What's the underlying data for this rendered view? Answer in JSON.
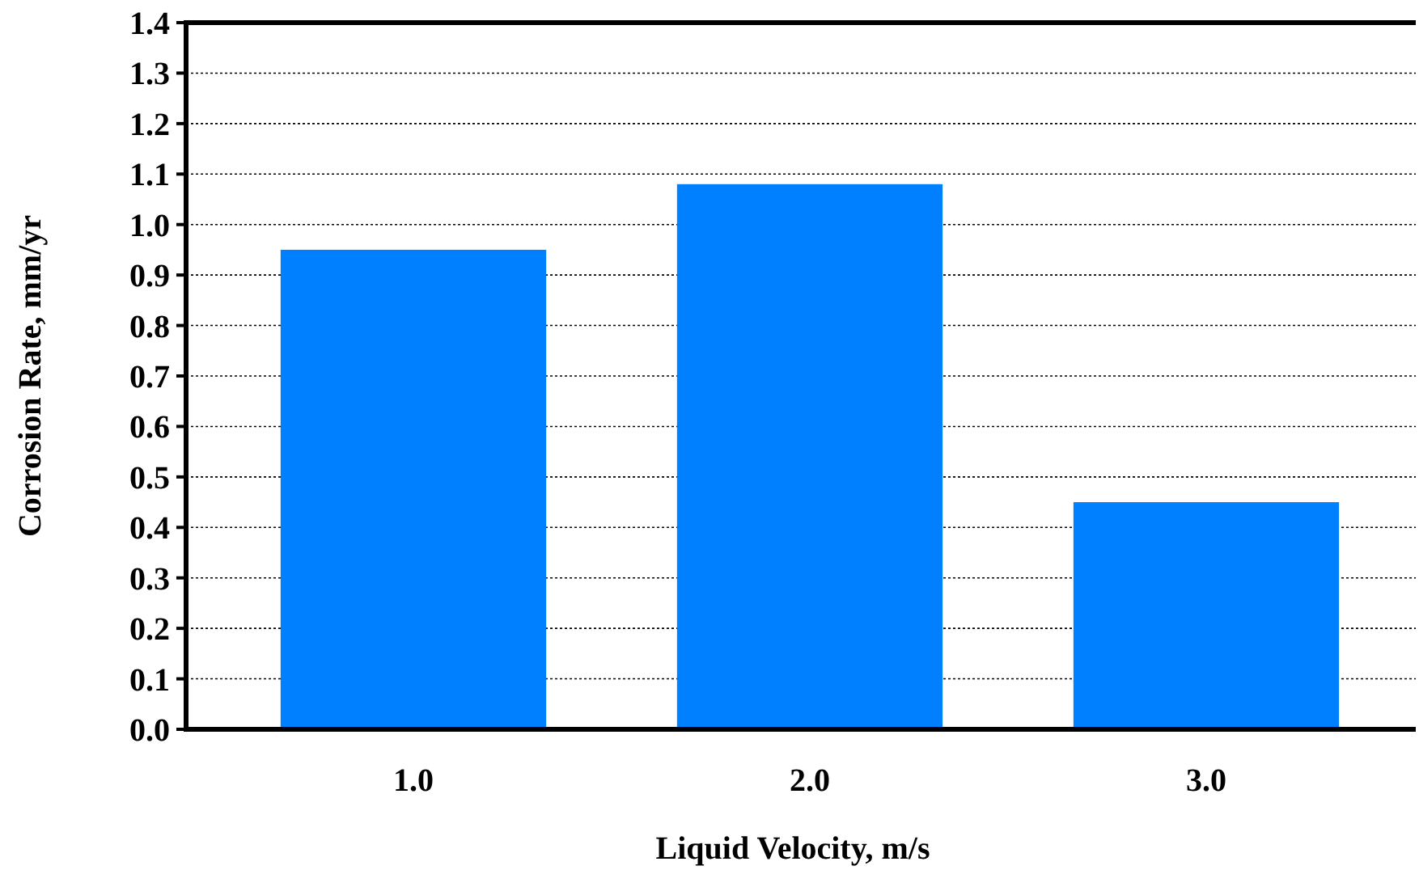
{
  "chart_data": {
    "type": "bar",
    "xlabel": "Liquid Velocity, m/s",
    "ylabel": "Corrosion Rate, mm/yr",
    "categories": [
      "1.0",
      "2.0",
      "3.0"
    ],
    "values": [
      0.95,
      1.08,
      0.45
    ],
    "color": "#0080ff",
    "ylim": [
      0,
      1.4
    ],
    "yticks": [
      {
        "value": 0,
        "label": "0.0"
      },
      0.1,
      0.2,
      0.3,
      0.4,
      0.5,
      0.6,
      0.7,
      0.8,
      0.9,
      {
        "value": 1,
        "label": "1.0"
      },
      1.1,
      1.2,
      1.3,
      1.4
    ],
    "grid": "y"
  }
}
